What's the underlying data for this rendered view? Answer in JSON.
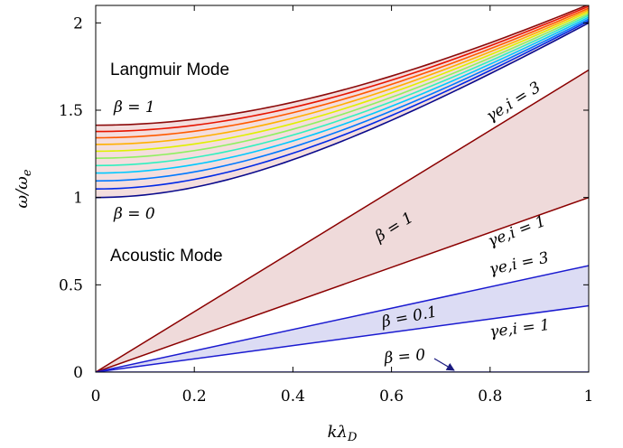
{
  "chart_data": {
    "type": "line",
    "xlabel": "kλ_D",
    "ylabel": "ω/ω_e",
    "xlim": [
      0,
      1
    ],
    "ylim": [
      0,
      2.1
    ],
    "xticks": [
      0,
      0.2,
      0.4,
      0.6,
      0.8,
      1
    ],
    "xtick_labels": [
      "0",
      "0.2",
      "0.4",
      "0.6",
      "0.8",
      "1"
    ],
    "yticks": [
      0,
      0.5,
      1,
      1.5,
      2
    ],
    "ytick_labels": [
      "0",
      "0.5",
      "1",
      "1.5",
      "2"
    ],
    "grid": false,
    "langmuir": {
      "label": "Langmuir Mode",
      "curve_count": 11,
      "omega_at_k0": [
        1.0,
        1.049,
        1.095,
        1.14,
        1.183,
        1.225,
        1.265,
        1.304,
        1.342,
        1.378,
        1.414
      ],
      "omega_at_k1": [
        2.0,
        2.011,
        2.021,
        2.032,
        2.043,
        2.053,
        2.064,
        2.074,
        2.084,
        2.095,
        2.105
      ],
      "colormap": [
        "#0a0a8c",
        "#0028e6",
        "#0078ff",
        "#00c8ff",
        "#30f0c0",
        "#90f060",
        "#e0f000",
        "#ffb000",
        "#ff5a00",
        "#e61400",
        "#8c0a0a"
      ],
      "beta_min_label": "β = 0",
      "beta_max_label": "β = 1"
    },
    "acoustic": {
      "label": "Acoustic Mode",
      "series": [
        {
          "name": "β = 1, γe,i = 3",
          "x": [
            0,
            1
          ],
          "y": [
            0,
            1.73
          ],
          "color": "#8b0000"
        },
        {
          "name": "β = 1, γe,i = 1",
          "x": [
            0,
            1
          ],
          "y": [
            0,
            1.0
          ],
          "color": "#8b0000"
        },
        {
          "name": "β = 0.1, γe,i = 3",
          "x": [
            0,
            1
          ],
          "y": [
            0,
            0.61
          ],
          "color": "#1a1ad0"
        },
        {
          "name": "β = 0.1, γe,i = 1",
          "x": [
            0,
            1
          ],
          "y": [
            0,
            0.38
          ],
          "color": "#1a1ad0"
        },
        {
          "name": "β = 0",
          "x": [
            0,
            1
          ],
          "y": [
            0,
            0
          ],
          "color": "#1a1ad0"
        }
      ],
      "fill_beta1": "#efdada",
      "fill_beta01": "#dcdcf4"
    },
    "annotations": {
      "gamma3_upper": "γe,i = 3",
      "beta1": "β = 1",
      "gamma1_upper": "γe,i = 1",
      "gamma3_lower": "γe,i = 3",
      "beta01": "β = 0.1",
      "gamma1_lower": "γe,i = 1",
      "beta0": "β = 0"
    }
  }
}
